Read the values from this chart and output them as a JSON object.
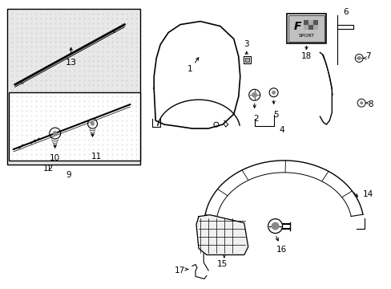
{
  "bg_color": "#ffffff",
  "line_color": "#000000",
  "text_color": "#000000",
  "gray_bg": "#e8e8e8",
  "figsize": [
    4.89,
    3.6
  ],
  "dpi": 100
}
